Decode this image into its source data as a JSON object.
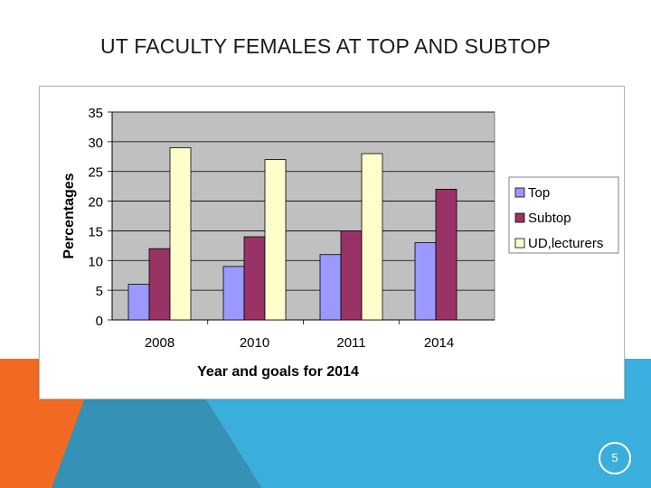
{
  "slide": {
    "title": "UT FACULTY FEMALES AT TOP AND SUBTOP",
    "page_number": "5"
  },
  "colors": {
    "orange": "#f26a21",
    "blue": "#3aaedc",
    "teal": "#3591b5",
    "plot_bg": "#c0c0c0"
  },
  "chart_data": {
    "type": "bar",
    "title": "",
    "xlabel": "Year and goals for 2014",
    "ylabel": "Percentages",
    "ylim": [
      0,
      35
    ],
    "yticks": [
      0,
      5,
      10,
      15,
      20,
      25,
      30,
      35
    ],
    "categories": [
      "2008",
      "2010",
      "2011",
      "2014"
    ],
    "grid": true,
    "legend_position": "right",
    "series": [
      {
        "name": "Top",
        "color": "#9999ff",
        "values": [
          6,
          9,
          11,
          13
        ]
      },
      {
        "name": "Subtop",
        "color": "#993366",
        "values": [
          12,
          14,
          15,
          22
        ]
      },
      {
        "name": "UD,lecturers",
        "color": "#ffffcc",
        "values": [
          29,
          27,
          28,
          null
        ]
      }
    ]
  }
}
